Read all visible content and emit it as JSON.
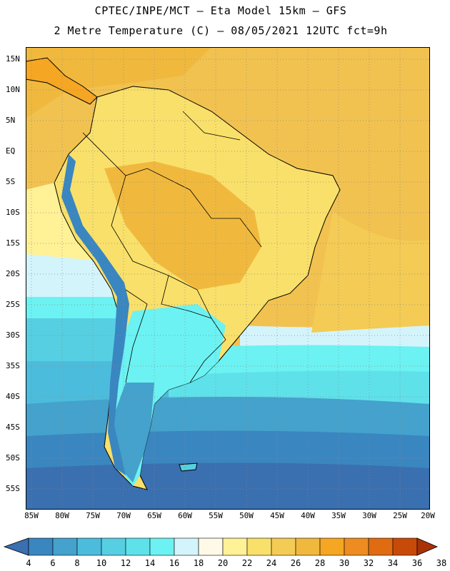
{
  "title": {
    "line1": "CPTEC/INPE/MCT –  Eta Model 15km – GFS",
    "line2": "2 Metre Temperature (C) – 08/05/2021 12UTC fct=9h"
  },
  "axes": {
    "lat_labels": [
      "15N",
      "10N",
      "5N",
      "EQ",
      "5S",
      "10S",
      "15S",
      "20S",
      "25S",
      "30S",
      "35S",
      "40S",
      "45S",
      "50S",
      "55S"
    ],
    "lon_labels": [
      "85W",
      "80W",
      "75W",
      "70W",
      "65W",
      "60W",
      "55W",
      "50W",
      "45W",
      "40W",
      "35W",
      "30W",
      "25W",
      "20W"
    ]
  },
  "colorbar": {
    "labels": [
      "4",
      "6",
      "8",
      "10",
      "12",
      "14",
      "16",
      "18",
      "20",
      "22",
      "24",
      "26",
      "28",
      "30",
      "32",
      "34",
      "36",
      "38"
    ],
    "colors": [
      "#3a6fb0",
      "#3a86c0",
      "#44a2cc",
      "#4cbcdc",
      "#56cfe2",
      "#5fe1ea",
      "#6cf2f2",
      "#d4f4fc",
      "#fffae8",
      "#fff196",
      "#f9e06a",
      "#f4cb54",
      "#f0b93e",
      "#f5a623",
      "#ee8c22",
      "#e06b10",
      "#c84a08",
      "#a83205"
    ]
  },
  "chart_data": {
    "type": "heatmap",
    "title": "2 Metre Temperature (C) – 08/05/2021 12UTC fct=9h",
    "variable": "2 Metre Temperature",
    "units": "C",
    "model": "Eta Model 15km – GFS",
    "lon_range": [
      -86,
      -20
    ],
    "lat_range": [
      -58,
      17
    ],
    "color_levels": [
      4,
      6,
      8,
      10,
      12,
      14,
      16,
      18,
      20,
      22,
      24,
      26,
      28,
      30,
      32,
      34,
      36,
      38
    ]
  }
}
